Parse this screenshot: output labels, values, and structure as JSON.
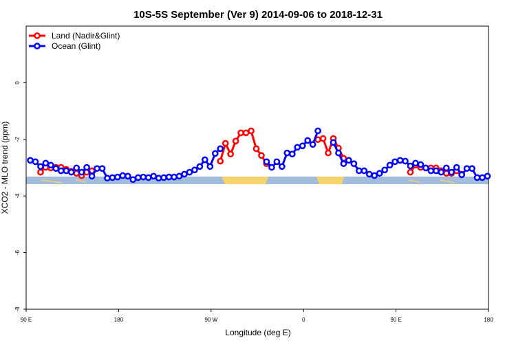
{
  "chart_data": {
    "type": "line",
    "title": "10S-5S September (Ver 9)   2014-09-06 to 2018-12-31",
    "x_label": "Longitude (deg E)",
    "y_label": "XCO2 - MLO trend (ppm)",
    "xlim": [
      90,
      540
    ],
    "ylim": [
      -8,
      2
    ],
    "xticks": [
      {
        "value": 90,
        "label": "90 E"
      },
      180,
      {
        "value": 270,
        "label": "90 W"
      },
      {
        "value": 360,
        "label": "0"
      },
      {
        "value": 450,
        "label": "90 E"
      },
      {
        "value": 540,
        "label": "180"
      }
    ],
    "yticks": [
      -8,
      -6,
      -4,
      -2,
      0
    ],
    "legend": "top-left",
    "x": [
      94,
      99,
      104,
      109,
      114,
      119,
      124,
      129,
      134,
      139,
      144,
      149,
      154,
      159,
      164,
      169,
      174,
      179,
      184,
      189,
      194,
      199,
      204,
      209,
      214,
      219,
      224,
      229,
      234,
      239,
      244,
      249,
      254,
      259,
      264,
      269,
      274,
      279,
      284,
      289,
      294,
      299,
      304,
      309,
      314,
      319,
      324,
      329,
      334,
      339,
      344,
      349,
      354,
      359,
      364,
      369,
      374,
      379,
      384,
      389,
      394,
      399,
      404,
      409,
      414,
      419,
      424,
      429,
      434,
      439,
      444,
      449,
      454,
      459,
      464,
      469,
      474,
      479,
      484,
      489,
      494,
      499,
      504,
      509,
      514,
      519,
      524,
      529,
      534,
      539
    ],
    "series": [
      {
        "name": "Land (Nadir&Glint)",
        "color": "#ff0000",
        "values": [
          null,
          null,
          -3.16,
          -2.99,
          -3.01,
          -2.99,
          -2.99,
          -3.06,
          -3.13,
          -3.2,
          -3.28,
          -3.16,
          -3.11,
          null,
          null,
          null,
          null,
          null,
          null,
          null,
          null,
          null,
          null,
          null,
          null,
          null,
          null,
          null,
          null,
          null,
          null,
          null,
          null,
          null,
          null,
          null,
          null,
          -2.77,
          -2.14,
          -2.52,
          -2.06,
          -1.77,
          -1.77,
          -1.7,
          -2.33,
          -2.57,
          -2.86,
          null,
          null,
          null,
          null,
          null,
          null,
          null,
          null,
          null,
          -2.01,
          -1.97,
          -2.48,
          -1.97,
          -2.31,
          -2.67,
          null,
          null,
          null,
          null,
          null,
          null,
          null,
          null,
          null,
          null,
          null,
          null,
          -3.16,
          -2.91,
          -2.99,
          -3.01,
          -3.01,
          -3.01,
          -3.11,
          -3.2,
          -3.2,
          -3.11,
          -3.23,
          null,
          null,
          null,
          null,
          null
        ]
      },
      {
        "name": "Ocean (Glint)",
        "color": "#0000ff",
        "values": [
          -2.74,
          -2.79,
          -2.96,
          -2.84,
          -2.91,
          -3.03,
          -3.11,
          -3.11,
          -3.16,
          -3.01,
          -3.16,
          -2.99,
          -3.3,
          -3.03,
          -3.03,
          -3.37,
          -3.35,
          -3.33,
          -3.28,
          -3.3,
          -3.42,
          -3.35,
          -3.33,
          -3.35,
          -3.3,
          -3.37,
          -3.35,
          -3.33,
          -3.33,
          -3.3,
          -3.23,
          -3.16,
          -3.08,
          -2.96,
          -2.72,
          -2.96,
          -2.5,
          -2.33,
          null,
          null,
          null,
          null,
          null,
          null,
          null,
          null,
          -2.79,
          -2.99,
          -2.79,
          -2.96,
          -2.48,
          -2.52,
          -2.28,
          -2.23,
          -2.04,
          -2.18,
          -1.7,
          null,
          null,
          -2.11,
          -2.48,
          -2.86,
          -2.74,
          -2.86,
          -3.11,
          -3.11,
          -3.23,
          -3.28,
          -3.2,
          -3.08,
          -2.91,
          -2.79,
          -2.74,
          -2.77,
          -2.94,
          -2.84,
          -2.89,
          -3.01,
          -3.11,
          -3.11,
          -3.16,
          -3.01,
          -3.16,
          -2.99,
          -3.25,
          -3.03,
          -3.03,
          -3.35,
          -3.35,
          -3.3
        ]
      }
    ]
  }
}
